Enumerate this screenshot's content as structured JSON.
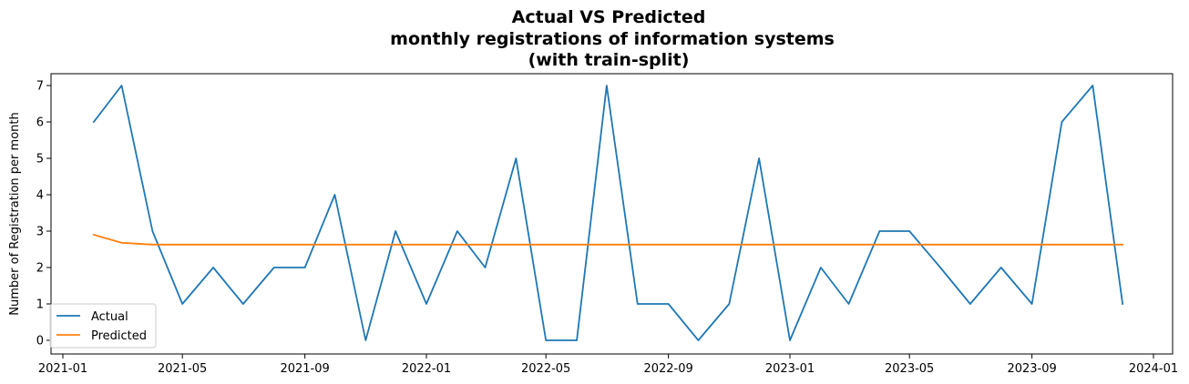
{
  "chart_data": {
    "type": "line",
    "title_lines": [
      "Actual VS Predicted",
      "monthly registrations of information systems",
      "(with train-split)"
    ],
    "xlabel": "",
    "ylabel": "Number of Registration per month",
    "x_ticks": [
      "2021-01",
      "2021-05",
      "2021-09",
      "2022-01",
      "2022-05",
      "2022-09",
      "2023-01",
      "2023-05",
      "2023-09",
      "2024-01"
    ],
    "y_ticks": [
      0,
      1,
      2,
      3,
      4,
      5,
      6,
      7
    ],
    "ylim": [
      -0.35,
      7.35
    ],
    "xlim": [
      "2021-01-01",
      "2024-01-01"
    ],
    "grid": false,
    "legend_position": "lower-left",
    "x": [
      "2021-02-01",
      "2021-03-01",
      "2021-04-01",
      "2021-05-01",
      "2021-06-01",
      "2021-07-01",
      "2021-08-01",
      "2021-09-01",
      "2021-10-01",
      "2021-11-01",
      "2021-12-01",
      "2022-01-01",
      "2022-02-01",
      "2022-03-01",
      "2022-04-01",
      "2022-05-01",
      "2022-06-01",
      "2022-07-01",
      "2022-08-01",
      "2022-09-01",
      "2022-10-01",
      "2022-11-01",
      "2022-12-01",
      "2023-01-01",
      "2023-02-01",
      "2023-03-01",
      "2023-04-01",
      "2023-05-01",
      "2023-06-01",
      "2023-07-01",
      "2023-08-01",
      "2023-09-01",
      "2023-10-01",
      "2023-11-01",
      "2023-12-01"
    ],
    "series": [
      {
        "name": "Actual",
        "color": "#1f77b4",
        "values": [
          6,
          7,
          3,
          1,
          2,
          1,
          2,
          2,
          4,
          0,
          3,
          1,
          3,
          2,
          5,
          0,
          0,
          7,
          1,
          1,
          0,
          1,
          5,
          0,
          2,
          1,
          3,
          3,
          2,
          1,
          2,
          1,
          6,
          7,
          1
        ]
      },
      {
        "name": "Predicted",
        "color": "#ff7f0e",
        "values": [
          2.9,
          2.68,
          2.63,
          2.63,
          2.63,
          2.63,
          2.63,
          2.63,
          2.63,
          2.63,
          2.63,
          2.63,
          2.63,
          2.63,
          2.63,
          2.63,
          2.63,
          2.63,
          2.63,
          2.63,
          2.63,
          2.63,
          2.63,
          2.63,
          2.63,
          2.63,
          2.63,
          2.63,
          2.63,
          2.63,
          2.63,
          2.63,
          2.63,
          2.63,
          2.63
        ]
      }
    ]
  }
}
